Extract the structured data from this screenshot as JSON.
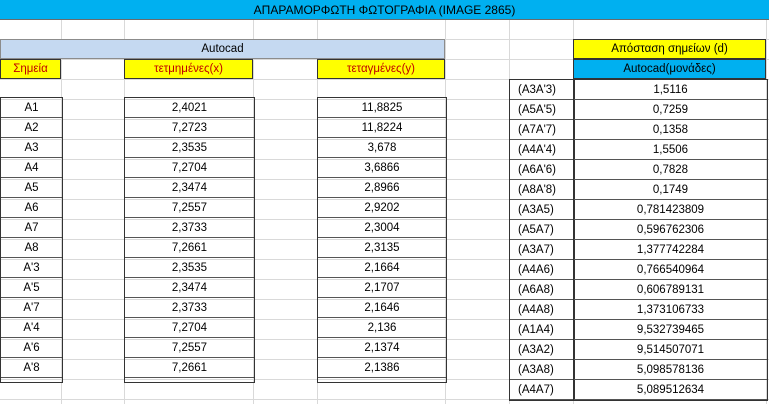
{
  "sheet_title": "ΑΠΑΡΑΜΟΡΦΩΤΗ ΦΩΤΟΓΡΑΦΙΑ (IMAGE 2865)",
  "left_block": {
    "group_header": "Autocad",
    "col_point": "Σημεία",
    "col_x": "τετμημένες(x)",
    "col_y": "τεταγμένες(y)",
    "rows": [
      {
        "point": "Α1",
        "x": "2,4021",
        "y": "11,8825"
      },
      {
        "point": "Α2",
        "x": "7,2723",
        "y": "11,8224"
      },
      {
        "point": "Α3",
        "x": "2,3535",
        "y": "3,678"
      },
      {
        "point": "Α4",
        "x": "7,2704",
        "y": "3,6866"
      },
      {
        "point": "Α5",
        "x": "2,3474",
        "y": "2,8966"
      },
      {
        "point": "Α6",
        "x": "7,2557",
        "y": "2,9202"
      },
      {
        "point": "Α7",
        "x": "2,3733",
        "y": "2,3004"
      },
      {
        "point": "Α8",
        "x": "7,2661",
        "y": "2,3135"
      },
      {
        "point": "Α'3",
        "x": "2,3535",
        "y": "2,1664"
      },
      {
        "point": "Α'5",
        "x": "2,3474",
        "y": "2,1707"
      },
      {
        "point": "Α'7",
        "x": "2,3733",
        "y": "2,1646"
      },
      {
        "point": "Α'4",
        "x": "7,2704",
        "y": "2,136"
      },
      {
        "point": "Α'6",
        "x": "7,2557",
        "y": "2,1374"
      },
      {
        "point": "Α'8",
        "x": "7,2661",
        "y": "2,1386"
      }
    ]
  },
  "right_block": {
    "header": "Απόσταση σημείων (d)",
    "subheader": "Autocad(μονάδες)",
    "rows": [
      {
        "pair": "(Α3Α'3)",
        "d": "1,5116"
      },
      {
        "pair": "(Α5Α'5)",
        "d": "0,7259"
      },
      {
        "pair": "(Α7Α'7)",
        "d": "0,1358"
      },
      {
        "pair": "(Α4Α'4)",
        "d": "1,5506"
      },
      {
        "pair": "(Α6Α'6)",
        "d": "0,7828"
      },
      {
        "pair": "(Α8Α'8)",
        "d": "0,1749"
      },
      {
        "pair": "(Α3Α5)",
        "d": "0,781423809"
      },
      {
        "pair": "(Α5Α7)",
        "d": "0,596762306"
      },
      {
        "pair": "(Α3Α7)",
        "d": "1,377742284"
      },
      {
        "pair": "(Α4Α6)",
        "d": "0,766540964"
      },
      {
        "pair": "(Α6Α8)",
        "d": "0,606789131"
      },
      {
        "pair": "(Α4Α8)",
        "d": "1,373106733"
      },
      {
        "pair": "(Α1Α4)",
        "d": "9,532739465"
      },
      {
        "pair": "(Α3Α2)",
        "d": "9,514507071"
      },
      {
        "pair": "(Α3Α8)",
        "d": "5,098578136"
      },
      {
        "pair": "(Α4Α7)",
        "d": "5,089512634"
      }
    ]
  },
  "colors": {
    "title_bg": "#00b0f0",
    "autocad_bg": "#c5d9f1",
    "yellow": "#ffff00",
    "header_text_red": "#c00000"
  }
}
